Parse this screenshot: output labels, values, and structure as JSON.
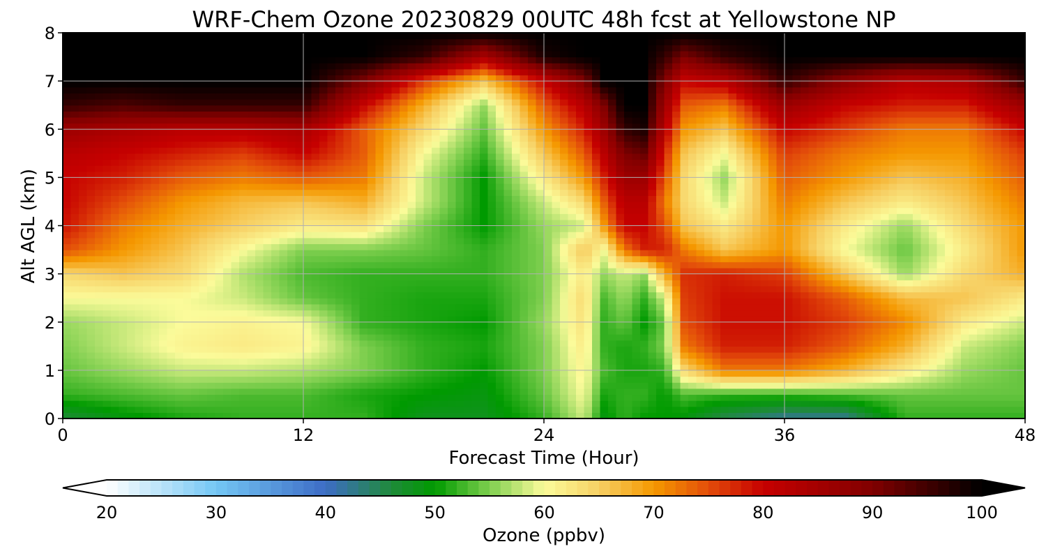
{
  "chart_data": {
    "type": "heatmap",
    "title": "WRF-Chem Ozone  20230829 00UTC 48h fcst at Yellowstone NP",
    "xlabel": "Forecast Time (Hour)",
    "ylabel": "Alt AGL (km)",
    "xlim": [
      0,
      48
    ],
    "ylim": [
      0,
      8
    ],
    "x_ticks": [
      0,
      12,
      24,
      36,
      48
    ],
    "y_ticks": [
      0,
      1,
      2,
      3,
      4,
      5,
      6,
      7,
      8
    ],
    "grid": true,
    "x": [
      0,
      3,
      6,
      9,
      12,
      15,
      18,
      21,
      24,
      26,
      27,
      28,
      29,
      30,
      31,
      33,
      36,
      39,
      42,
      45,
      48
    ],
    "y": [
      0,
      0.5,
      1,
      1.5,
      2,
      2.5,
      3,
      3.5,
      4,
      4.5,
      5,
      5.5,
      6,
      6.5,
      7,
      7.5,
      8
    ],
    "z_ppbv": [
      [
        46,
        49,
        51,
        52,
        52,
        52,
        48,
        48,
        52,
        58,
        49,
        52,
        50,
        50,
        49,
        45,
        42,
        42,
        52,
        52,
        52
      ],
      [
        52,
        53,
        54,
        53,
        53,
        51,
        50,
        49,
        54,
        60,
        51,
        52,
        52,
        50,
        53,
        52,
        52,
        53,
        54,
        54,
        54
      ],
      [
        54,
        56,
        58,
        58,
        57,
        55,
        52,
        50,
        55,
        61,
        53,
        51,
        51,
        52,
        64,
        72,
        72,
        68,
        62,
        56,
        54
      ],
      [
        55,
        58,
        61,
        62,
        61,
        55,
        52,
        51,
        55,
        62,
        52,
        51,
        52,
        55,
        72,
        78,
        78,
        74,
        68,
        58,
        55
      ],
      [
        56,
        58,
        60,
        61,
        60,
        52,
        51,
        50,
        56,
        63,
        52,
        54,
        50,
        54,
        75,
        79,
        79,
        76,
        71,
        62,
        58
      ],
      [
        60,
        60,
        60,
        58,
        54,
        52,
        51,
        51,
        55,
        64,
        53,
        56,
        52,
        58,
        76,
        79,
        79,
        74,
        67,
        66,
        62
      ],
      [
        64,
        66,
        64,
        57,
        53,
        52,
        52,
        52,
        55,
        62,
        56,
        58,
        56,
        68,
        77,
        78,
        76,
        66,
        56,
        64,
        68
      ],
      [
        75,
        70,
        66,
        60,
        55,
        55,
        54,
        52,
        55,
        66,
        60,
        72,
        78,
        78,
        72,
        66,
        70,
        60,
        54,
        62,
        70
      ],
      [
        79,
        72,
        68,
        65,
        62,
        63,
        55,
        50,
        56,
        58,
        70,
        80,
        80,
        75,
        66,
        62,
        70,
        62,
        56,
        64,
        70
      ],
      [
        80,
        75,
        70,
        67,
        66,
        68,
        58,
        50,
        58,
        64,
        74,
        82,
        82,
        72,
        64,
        58,
        72,
        66,
        62,
        66,
        72
      ],
      [
        80,
        78,
        74,
        72,
        74,
        72,
        58,
        50,
        62,
        70,
        78,
        86,
        86,
        75,
        64,
        56,
        74,
        70,
        66,
        68,
        74
      ],
      [
        82,
        80,
        78,
        76,
        80,
        74,
        60,
        52,
        66,
        74,
        82,
        90,
        92,
        78,
        66,
        60,
        76,
        72,
        70,
        70,
        76
      ],
      [
        86,
        84,
        82,
        82,
        84,
        74,
        64,
        54,
        70,
        78,
        86,
        96,
        98,
        82,
        70,
        66,
        80,
        76,
        72,
        72,
        80
      ],
      [
        96,
        94,
        96,
        96,
        96,
        80,
        68,
        56,
        74,
        82,
        90,
        100,
        100,
        86,
        74,
        72,
        86,
        80,
        78,
        78,
        86
      ],
      [
        100,
        100,
        100,
        100,
        100,
        90,
        76,
        66,
        80,
        90,
        100,
        100,
        100,
        90,
        80,
        82,
        96,
        88,
        82,
        84,
        96
      ],
      [
        100,
        100,
        100,
        100,
        100,
        100,
        96,
        84,
        98,
        100,
        100,
        100,
        100,
        96,
        90,
        96,
        100,
        100,
        100,
        100,
        100
      ],
      [
        100,
        100,
        100,
        100,
        100,
        100,
        100,
        100,
        100,
        100,
        100,
        100,
        100,
        100,
        100,
        100,
        100,
        100,
        100,
        100,
        100
      ]
    ],
    "colorbar": {
      "label": "Ozone  (ppbv)",
      "min": 20,
      "max": 100,
      "ticks": [
        20,
        30,
        40,
        50,
        60,
        70,
        80,
        90,
        100
      ],
      "extend": "both",
      "stops": [
        {
          "v": 20,
          "c": "#ffffff"
        },
        {
          "v": 30,
          "c": "#74c7f4"
        },
        {
          "v": 40,
          "c": "#3d6cc6"
        },
        {
          "v": 46,
          "c": "#1f8a3a"
        },
        {
          "v": 50,
          "c": "#009a00"
        },
        {
          "v": 55,
          "c": "#7fcf4f"
        },
        {
          "v": 60,
          "c": "#fbfb9a"
        },
        {
          "v": 65,
          "c": "#f7d064"
        },
        {
          "v": 70,
          "c": "#f59800"
        },
        {
          "v": 75,
          "c": "#e34d0a"
        },
        {
          "v": 80,
          "c": "#c60000"
        },
        {
          "v": 90,
          "c": "#800000"
        },
        {
          "v": 100,
          "c": "#000000"
        }
      ]
    }
  }
}
